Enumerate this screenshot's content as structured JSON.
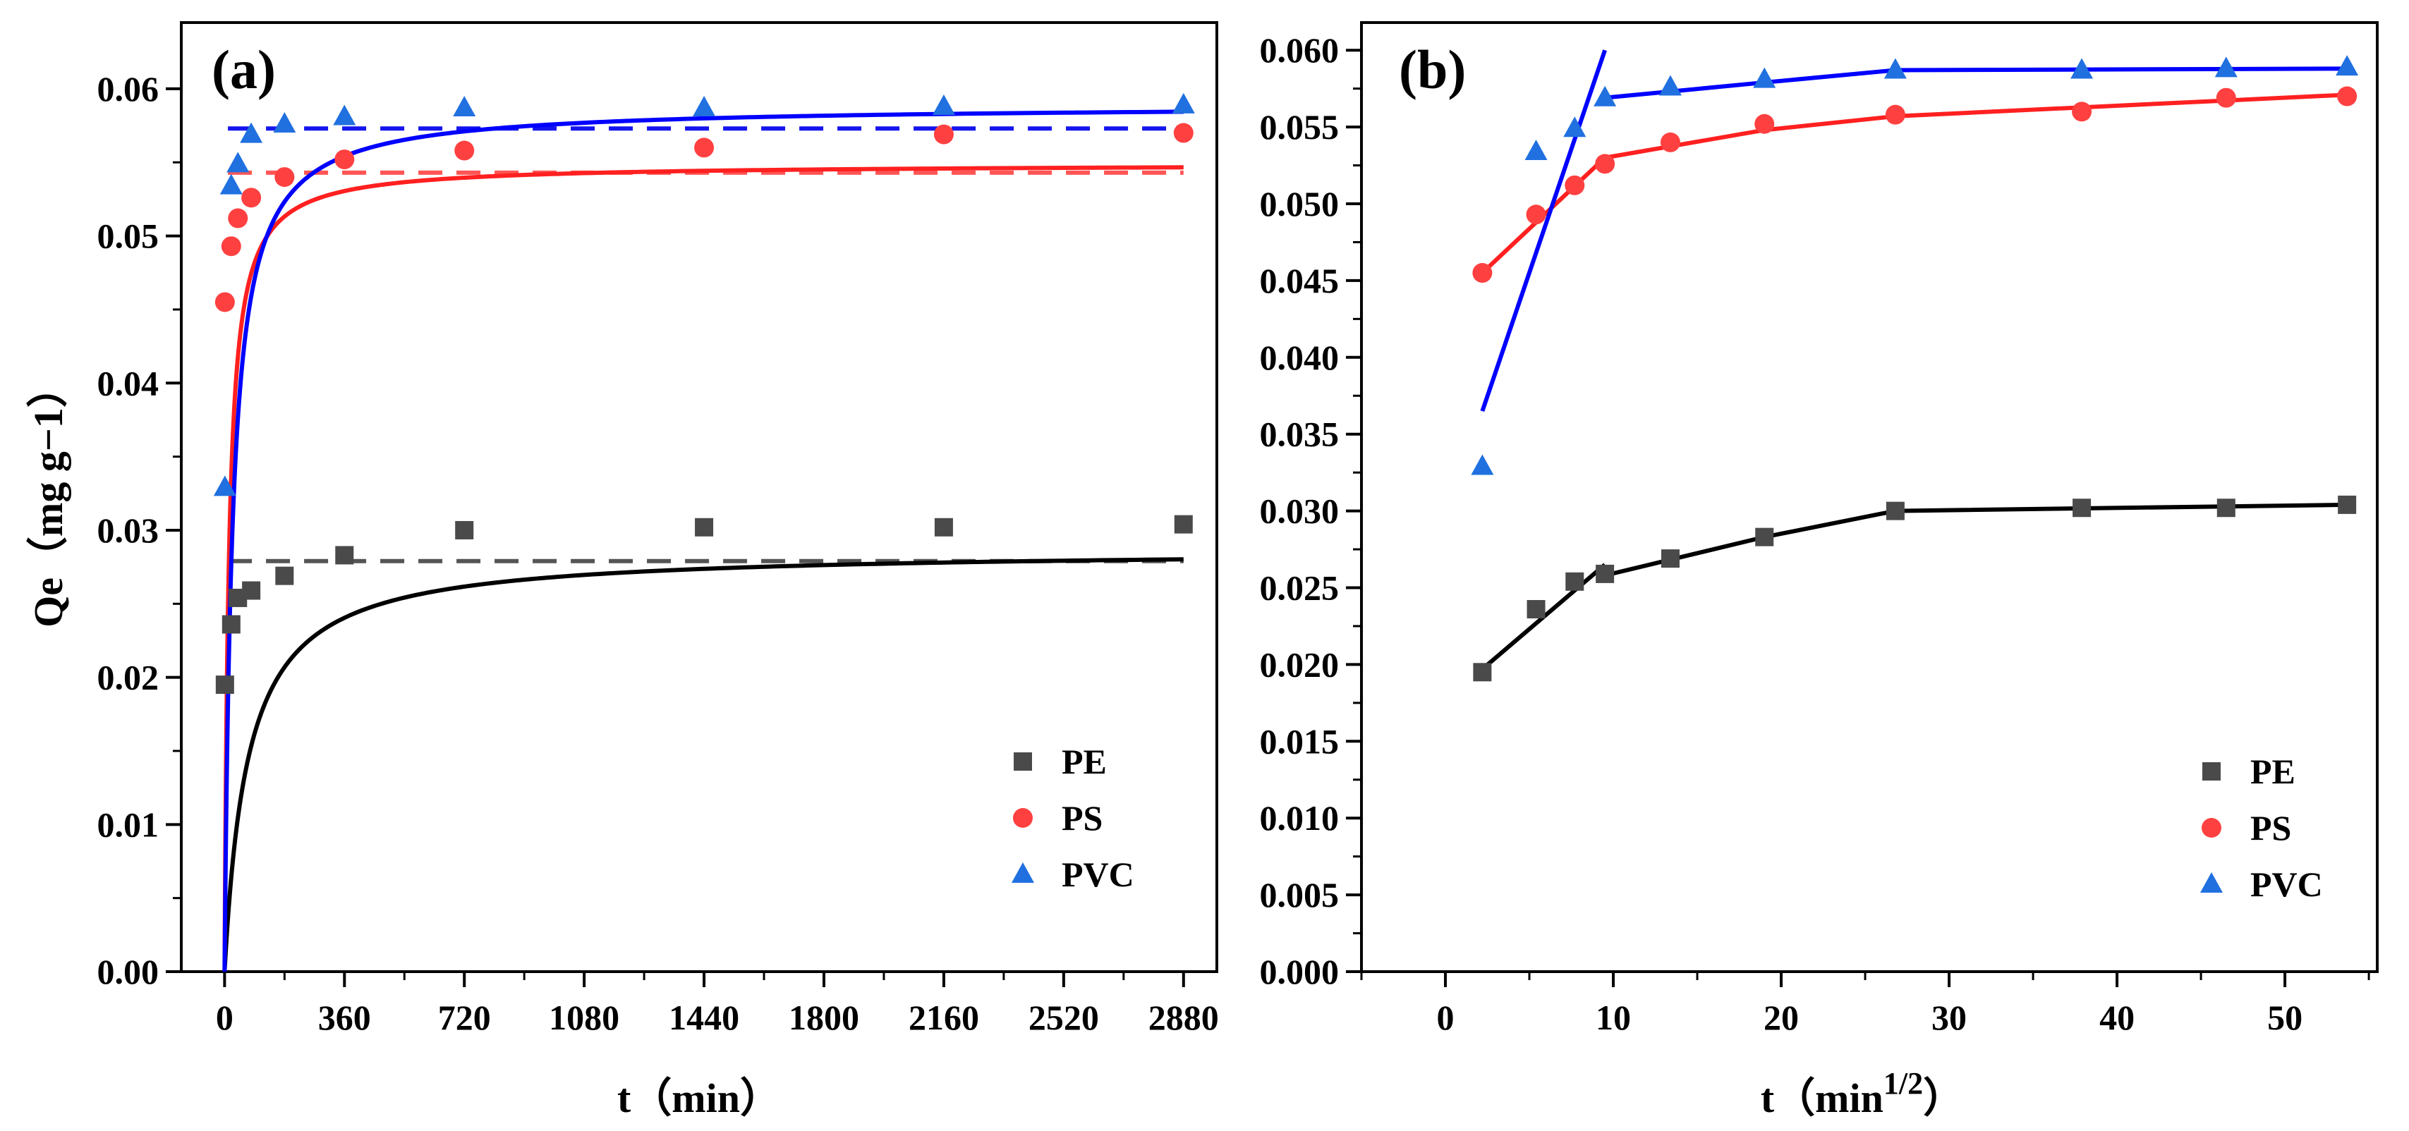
{
  "figure": {
    "ylabel_sub": "（mg g−1）"
  },
  "chart_data": [
    {
      "type": "scatter",
      "panel_label": "(a)",
      "xlabel": "t（min）",
      "ylabel": "Qe（mg g−1）",
      "xlim": [
        -130,
        2980
      ],
      "ylim": [
        0,
        0.0645
      ],
      "xticks": [
        0,
        360,
        720,
        1080,
        1440,
        1800,
        2160,
        2520,
        2880
      ],
      "xtick_labels": [
        "0",
        "360",
        "720",
        "1080",
        "1440",
        "1800",
        "2160",
        "2520",
        "2880"
      ],
      "yticks": [
        0,
        0.01,
        0.02,
        0.03,
        0.04,
        0.05,
        0.06
      ],
      "ytick_labels": [
        "0.00",
        "0.01",
        "0.02",
        "0.03",
        "0.04",
        "0.05",
        "0.06"
      ],
      "legend": {
        "position": "bottom-right",
        "entries": [
          "PE",
          "PS",
          "PVC"
        ]
      },
      "series": [
        {
          "name": "PE",
          "marker": "square",
          "color": "#4a4a4a",
          "fit_color": "#000000",
          "dash_color": "#555555",
          "x": [
            1,
            20,
            40,
            80,
            180,
            360,
            720,
            1440,
            2160,
            2880
          ],
          "y": [
            0.0195,
            0.0236,
            0.0254,
            0.0259,
            0.0269,
            0.0283,
            0.03,
            0.0302,
            0.0302,
            0.0304
          ],
          "pso": {
            "qe": 0.0287,
            "k": 0.5
          },
          "pfo_qe": 0.0279
        },
        {
          "name": "PS",
          "marker": "circle",
          "color": "#ff4040",
          "fit_color": "#ff2020",
          "dash_color": "#ff5555",
          "x": [
            1,
            20,
            40,
            80,
            180,
            360,
            720,
            1440,
            2160,
            2880
          ],
          "y": [
            0.0455,
            0.0493,
            0.0512,
            0.0526,
            0.054,
            0.0552,
            0.0558,
            0.056,
            0.0569,
            0.057
          ],
          "pso": {
            "qe": 0.0549,
            "k": 1.45
          },
          "pfo_qe": 0.0543
        },
        {
          "name": "PVC",
          "marker": "triangle",
          "color": "#2070e0",
          "fit_color": "#0000ff",
          "dash_color": "#1515ee",
          "x": [
            1,
            20,
            40,
            80,
            180,
            360,
            720,
            1440,
            2160,
            2880
          ],
          "y": [
            0.0329,
            0.0534,
            0.0549,
            0.0569,
            0.0576,
            0.0581,
            0.0587,
            0.0587,
            0.0588,
            0.0589
          ],
          "pso": {
            "qe": 0.0589,
            "k": 0.75
          },
          "pfo_qe": 0.0573
        }
      ]
    },
    {
      "type": "scatter",
      "panel_label": "(b)",
      "xlabel": "t（min",
      "xlabel_sup": "1/2",
      "xlabel_end": "）",
      "ylabel": "",
      "xlim": [
        -5,
        55.5
      ],
      "ylim": [
        0,
        0.0618
      ],
      "xticks": [
        0,
        10,
        20,
        30,
        40,
        50
      ],
      "xtick_labels": [
        "0",
        "10",
        "20",
        "30",
        "40",
        "50"
      ],
      "yticks": [
        0,
        0.005,
        0.01,
        0.015,
        0.02,
        0.025,
        0.03,
        0.035,
        0.04,
        0.045,
        0.05,
        0.055,
        0.06
      ],
      "ytick_labels": [
        "0.000",
        "0.005",
        "0.010",
        "0.015",
        "0.020",
        "0.025",
        "0.030",
        "0.035",
        "0.040",
        "0.045",
        "0.050",
        "0.055",
        "0.060"
      ],
      "legend": {
        "position": "bottom-right",
        "entries": [
          "PE",
          "PS",
          "PVC"
        ]
      },
      "series": [
        {
          "name": "PE",
          "marker": "square",
          "color": "#4a4a4a",
          "fit_color": "#000000",
          "x": [
            2.2,
            5.4,
            7.7,
            9.5,
            13.4,
            19.0,
            26.8,
            37.9,
            46.5,
            53.7
          ],
          "y": [
            0.0195,
            0.0236,
            0.0254,
            0.0259,
            0.0269,
            0.0283,
            0.03,
            0.0302,
            0.0302,
            0.0304
          ],
          "fit_segments": [
            {
              "x": [
                2.2,
                9.5
              ],
              "y": [
                0.0197,
                0.0265
              ]
            },
            {
              "x": [
                9.5,
                19.0,
                26.8,
                53.7
              ],
              "y": [
                0.0258,
                0.0283,
                0.03,
                0.0304
              ]
            }
          ]
        },
        {
          "name": "PS",
          "marker": "circle",
          "color": "#ff4040",
          "fit_color": "#ff2020",
          "x": [
            2.2,
            5.4,
            7.7,
            9.5,
            13.4,
            19.0,
            26.8,
            37.9,
            46.5,
            53.7
          ],
          "y": [
            0.0455,
            0.0493,
            0.0512,
            0.0526,
            0.054,
            0.0552,
            0.0558,
            0.056,
            0.0569,
            0.057
          ],
          "fit_segments": [
            {
              "x": [
                2.2,
                9.5
              ],
              "y": [
                0.0455,
                0.053
              ]
            },
            {
              "x": [
                9.5,
                19.0,
                26.8,
                53.7
              ],
              "y": [
                0.053,
                0.0548,
                0.0557,
                0.0571
              ]
            }
          ]
        },
        {
          "name": "PVC",
          "marker": "triangle",
          "color": "#2070e0",
          "fit_color": "#0000ff",
          "x": [
            2.2,
            5.4,
            7.7,
            9.5,
            13.4,
            19.0,
            26.8,
            37.9,
            46.5,
            53.7
          ],
          "y": [
            0.0329,
            0.0534,
            0.0549,
            0.0569,
            0.0576,
            0.0581,
            0.0587,
            0.0587,
            0.0588,
            0.0589
          ],
          "fit_segments": [
            {
              "x": [
                2.2,
                9.5
              ],
              "y": [
                0.0365,
                0.06
              ]
            },
            {
              "x": [
                9.5,
                19.0,
                26.8,
                53.7
              ],
              "y": [
                0.0569,
                0.0579,
                0.0587,
                0.0588
              ]
            }
          ]
        }
      ]
    }
  ]
}
